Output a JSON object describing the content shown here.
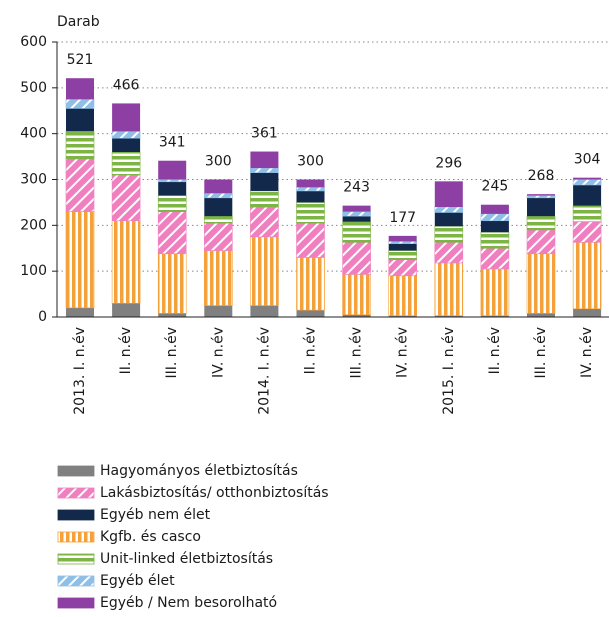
{
  "chart_data": {
    "type": "bar",
    "stacked": true,
    "y_axis_label": "Darab",
    "categories": [
      "2013. I. n.év",
      "II. n.év",
      "III. n.év",
      "IV. n.év",
      "2014. I. n.év",
      "II. n.év",
      "III. n.év",
      "IV. n.év",
      "2015. I. n.év",
      "II. n.év",
      "III. n.év",
      "IV. n.év"
    ],
    "totals": [
      521,
      466,
      341,
      300,
      361,
      300,
      243,
      177,
      296,
      245,
      268,
      304
    ],
    "ylim": [
      0,
      600
    ],
    "yticks": [
      0,
      100,
      200,
      300,
      400,
      500,
      600
    ],
    "grid": true,
    "series": [
      {
        "name": "Hagyományos életbiztosítás",
        "color": "#808080",
        "pattern": "solid",
        "values": [
          20,
          30,
          8,
          25,
          25,
          15,
          5,
          3,
          3,
          3,
          8,
          18
        ]
      },
      {
        "name": "Kgfb. és casco",
        "color": "#f5a13a",
        "pattern": "vertical",
        "values": [
          210,
          180,
          130,
          120,
          150,
          115,
          88,
          87,
          115,
          102,
          130,
          145
        ]
      },
      {
        "name": "Lakásbiztosítás/ otthonbiztosítás",
        "color": "#f07fc0",
        "pattern": "diagonal",
        "values": [
          115,
          100,
          92,
          60,
          65,
          75,
          70,
          35,
          45,
          45,
          52,
          45
        ]
      },
      {
        "name": "Unit-linked életbiztosítás",
        "color": "#7db544",
        "pattern": "horizontal",
        "values": [
          60,
          50,
          35,
          15,
          35,
          45,
          45,
          20,
          35,
          35,
          30,
          35
        ]
      },
      {
        "name": "Egyéb nem élet",
        "color": "#13294b",
        "pattern": "solid",
        "values": [
          50,
          30,
          30,
          40,
          40,
          25,
          12,
          15,
          30,
          25,
          40,
          45
        ]
      },
      {
        "name": "Egyéb élet",
        "color": "#8fbfe6",
        "pattern": "diagonal",
        "values": [
          20,
          15,
          5,
          10,
          10,
          8,
          10,
          5,
          12,
          15,
          5,
          12
        ]
      },
      {
        "name": "Egyéb / Nem besorolható",
        "color": "#8e3fa3",
        "pattern": "solid",
        "values": [
          46,
          61,
          41,
          30,
          36,
          17,
          13,
          12,
          56,
          20,
          3,
          4
        ]
      }
    ],
    "legend_order": [
      0,
      2,
      4,
      1,
      3,
      5,
      6
    ]
  }
}
